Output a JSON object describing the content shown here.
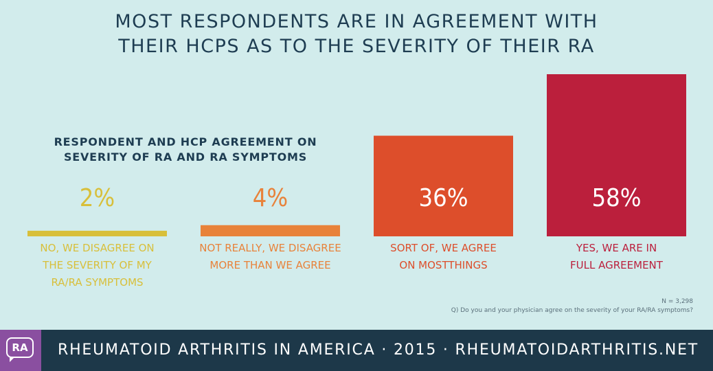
{
  "title_line1": "MOST RESPONDENTS ARE IN AGREEMENT WITH",
  "title_line2": "THEIR HCPS AS TO THE SEVERITY OF THEIR RA",
  "chart_data": {
    "type": "bar",
    "title": "RESPONDENT AND HCP AGREEMENT ON SEVERITY OF RA AND RA SYMPTOMS",
    "subtitle_lines": [
      "RESPONDENT AND HCP AGREEMENT ON",
      "SEVERITY OF RA AND RA SYMPTOMS"
    ],
    "categories": [
      [
        "NO, WE DISAGREE ON",
        "THE SEVERITY OF MY",
        "RA/RA SYMPTOMS"
      ],
      [
        "NOT REALLY, WE DISAGREE",
        "MORE THAN WE AGREE"
      ],
      [
        "SORT OF, WE AGREE",
        "ON MOSTTHINGS"
      ],
      [
        "YES, WE ARE IN",
        "FULL AGREEMENT"
      ]
    ],
    "values": [
      2,
      4,
      36,
      58
    ],
    "value_labels": [
      "2%",
      "4%",
      "36%",
      "58%"
    ],
    "colors": [
      "#d8bf3a",
      "#e8823a",
      "#dd4e2b",
      "#bb1f3c"
    ],
    "ylim": [
      0,
      58
    ],
    "xlabel": "",
    "ylabel": "",
    "grid": false
  },
  "notes": {
    "n": "N = 3,298",
    "question": "Q) Do you and your physician agree on the severity of your RA/RA symptoms?"
  },
  "footer": {
    "logo_text": "RA",
    "text": "RHEUMATOID ARTHRITIS IN AMERICA · 2015 · RHEUMATOIDARTHRITIS.NET"
  }
}
